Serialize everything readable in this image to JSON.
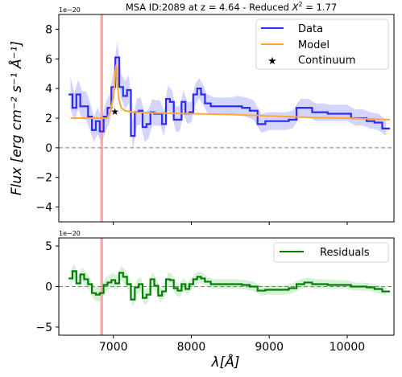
{
  "chart_data": [
    {
      "type": "line",
      "title": "MSA ID:2089 at z = 4.64 - Reduced",
      "title_chi_symbol": "X",
      "title_chi_exp": "2",
      "title_chi_value": "= 1.77",
      "offset_label": "1e−20",
      "ylabel": "Flux [erg cm⁻² s⁻¹ Å⁻¹]",
      "xlim": [
        6300,
        10600
      ],
      "ylim": [
        -5,
        9
      ],
      "y_ticks": [
        -4,
        -2,
        0,
        2,
        4,
        6,
        8
      ],
      "x_ticks": [
        7000,
        8000,
        9000,
        10000
      ],
      "legend": {
        "placement": "top-right",
        "entries": [
          "Data",
          "Model",
          "Continuum"
        ]
      },
      "line_marker_x": 6850,
      "series": [
        {
          "name": "Data",
          "x": [
            6450,
            6500,
            6550,
            6600,
            6650,
            6700,
            6750,
            6800,
            6850,
            6900,
            6950,
            7000,
            7050,
            7100,
            7150,
            7200,
            7250,
            7300,
            7350,
            7400,
            7450,
            7500,
            7550,
            7600,
            7650,
            7700,
            7750,
            7800,
            7850,
            7900,
            7950,
            8000,
            8050,
            8100,
            8150,
            8200,
            8300,
            8400,
            8500,
            8600,
            8700,
            8800,
            8900,
            9000,
            9100,
            9200,
            9300,
            9400,
            9500,
            9600,
            9700,
            9800,
            9900,
            10000,
            10100,
            10200,
            10300,
            10400,
            10500
          ],
          "y": [
            3.6,
            2.7,
            3.6,
            2.8,
            2.8,
            2.1,
            1.2,
            1.8,
            1.1,
            2.1,
            2.7,
            4.1,
            6.1,
            4.1,
            3.5,
            3.9,
            0.8,
            2.4,
            2.5,
            1.4,
            1.6,
            2.4,
            2.3,
            2.3,
            1.6,
            3.3,
            3.1,
            1.9,
            1.9,
            3.1,
            2.3,
            2.4,
            3.6,
            4.0,
            3.6,
            3.0,
            2.8,
            2.8,
            2.8,
            2.8,
            2.7,
            2.5,
            1.6,
            1.8,
            1.8,
            1.8,
            1.9,
            2.7,
            2.7,
            2.4,
            2.4,
            2.3,
            2.3,
            2.3,
            2.0,
            2.0,
            1.8,
            1.7,
            1.3
          ],
          "err_lo": [
            2.6,
            1.8,
            2.6,
            1.9,
            1.9,
            1.2,
            0.4,
            0.9,
            0.3,
            1.1,
            1.7,
            3.0,
            5.0,
            3.3,
            2.6,
            3.0,
            -0.2,
            1.5,
            1.6,
            0.4,
            0.6,
            1.5,
            1.5,
            1.5,
            0.8,
            2.5,
            2.3,
            1.1,
            1.1,
            2.3,
            1.6,
            1.7,
            2.9,
            3.3,
            2.9,
            2.4,
            2.2,
            2.2,
            2.2,
            2.2,
            2.1,
            1.9,
            1.0,
            1.2,
            1.2,
            1.2,
            1.3,
            2.1,
            2.1,
            1.8,
            1.8,
            1.8,
            1.8,
            1.8,
            1.5,
            1.5,
            1.3,
            1.2,
            0.8
          ],
          "err_hi": [
            4.8,
            3.7,
            4.6,
            3.8,
            3.8,
            3.1,
            2.1,
            2.7,
            2.0,
            3.0,
            3.6,
            5.2,
            7.2,
            5.0,
            4.5,
            4.9,
            1.8,
            3.3,
            3.4,
            2.4,
            2.6,
            3.3,
            3.2,
            3.2,
            2.5,
            4.2,
            3.9,
            2.8,
            2.8,
            3.9,
            3.1,
            3.1,
            4.3,
            4.7,
            4.3,
            3.6,
            3.4,
            3.4,
            3.4,
            3.5,
            3.4,
            3.2,
            2.3,
            2.4,
            2.4,
            2.4,
            2.5,
            3.3,
            3.3,
            3.0,
            3.0,
            2.9,
            2.9,
            2.9,
            2.6,
            2.6,
            2.4,
            2.3,
            1.9
          ]
        },
        {
          "name": "Model",
          "x": [
            6450,
            6700,
            6850,
            6920,
            6960,
            7000,
            7015,
            7025,
            7035,
            7045,
            7055,
            7070,
            7100,
            7150,
            7250,
            7500,
            8000,
            8500,
            9000,
            9500,
            10000,
            10550
          ],
          "y": [
            2.0,
            2.0,
            2.0,
            2.0,
            2.4,
            3.4,
            4.2,
            5.1,
            5.6,
            5.2,
            4.2,
            3.3,
            2.7,
            2.5,
            2.4,
            2.35,
            2.3,
            2.25,
            2.15,
            2.05,
            2.0,
            1.9
          ]
        }
      ],
      "points": [
        {
          "name": "Continuum",
          "x": 7020,
          "y": 2.5
        }
      ]
    },
    {
      "type": "line",
      "offset_label": "1e−20",
      "xlabel": "λ[Å]",
      "xlim": [
        6300,
        10600
      ],
      "ylim": [
        -6,
        6
      ],
      "y_ticks": [
        -5,
        0,
        5
      ],
      "x_ticks": [
        7000,
        8000,
        9000,
        10000
      ],
      "legend": {
        "placement": "top-right",
        "entries": [
          "Residuals"
        ]
      },
      "line_marker_x": 6850,
      "series": [
        {
          "name": "Residuals",
          "x": [
            6450,
            6500,
            6550,
            6600,
            6650,
            6700,
            6750,
            6800,
            6850,
            6900,
            6950,
            7000,
            7050,
            7100,
            7150,
            7200,
            7250,
            7300,
            7350,
            7400,
            7450,
            7500,
            7550,
            7600,
            7650,
            7700,
            7750,
            7800,
            7850,
            7900,
            7950,
            8000,
            8050,
            8100,
            8150,
            8200,
            8300,
            8400,
            8500,
            8600,
            8700,
            8800,
            8900,
            9000,
            9100,
            9200,
            9300,
            9400,
            9500,
            9600,
            9700,
            9800,
            9900,
            10000,
            10100,
            10200,
            10300,
            10400,
            10500
          ],
          "y": [
            1.0,
            1.9,
            0.4,
            1.5,
            0.9,
            0.3,
            -0.8,
            -1.0,
            -0.8,
            0.2,
            0.5,
            0.8,
            0.4,
            1.7,
            1.2,
            0.3,
            -1.6,
            -0.1,
            0.3,
            -1.4,
            -1.0,
            0.9,
            0.1,
            -1.1,
            -0.6,
            0.9,
            0.8,
            -0.2,
            -0.5,
            0.3,
            -0.3,
            0.3,
            0.9,
            1.2,
            1.0,
            0.6,
            0.3,
            0.3,
            0.3,
            0.3,
            0.2,
            0.0,
            -0.5,
            -0.4,
            -0.4,
            -0.4,
            -0.2,
            0.3,
            0.5,
            0.3,
            0.3,
            0.2,
            0.2,
            0.2,
            0.0,
            0.0,
            -0.1,
            -0.3,
            -0.6
          ],
          "err_lo": [
            0.2,
            1.0,
            -0.4,
            0.6,
            0.0,
            -0.6,
            -1.6,
            -1.9,
            -1.6,
            -0.7,
            -0.3,
            -0.1,
            -0.5,
            0.8,
            0.3,
            -0.6,
            -2.5,
            -1.0,
            -0.6,
            -2.3,
            -1.9,
            0.0,
            -0.8,
            -2.0,
            -1.4,
            0.1,
            0.0,
            -1.0,
            -1.3,
            -0.5,
            -1.0,
            -0.4,
            0.2,
            0.5,
            0.3,
            0.0,
            -0.3,
            -0.3,
            -0.3,
            -0.3,
            -0.4,
            -0.6,
            -1.1,
            -1.0,
            -1.0,
            -1.0,
            -0.8,
            -0.3,
            -0.1,
            -0.3,
            -0.3,
            -0.3,
            -0.3,
            -0.3,
            -0.5,
            -0.5,
            -0.6,
            -0.8,
            -1.1
          ],
          "err_hi": [
            1.9,
            2.8,
            1.2,
            2.3,
            1.8,
            1.1,
            0.0,
            -0.1,
            0.0,
            1.1,
            1.4,
            1.7,
            1.3,
            2.6,
            2.1,
            1.2,
            -0.7,
            0.8,
            1.2,
            -0.5,
            -0.1,
            1.8,
            1.0,
            -0.2,
            0.2,
            1.7,
            1.6,
            0.6,
            0.3,
            1.1,
            0.4,
            1.0,
            1.6,
            1.9,
            1.7,
            1.2,
            0.9,
            0.9,
            0.9,
            0.9,
            0.8,
            0.6,
            0.1,
            0.2,
            0.2,
            0.2,
            0.4,
            0.9,
            1.1,
            0.9,
            0.9,
            0.8,
            0.8,
            0.8,
            0.5,
            0.5,
            0.4,
            0.2,
            -0.1
          ]
        }
      ]
    }
  ],
  "colors": {
    "data": "#2b2bff",
    "data_band": "#c9c9fb",
    "model": "#ffa832",
    "residuals": "#008000",
    "residuals_band": "#cdeccd",
    "line_marker": "#f4a3a3",
    "zero_line": "#808080"
  }
}
